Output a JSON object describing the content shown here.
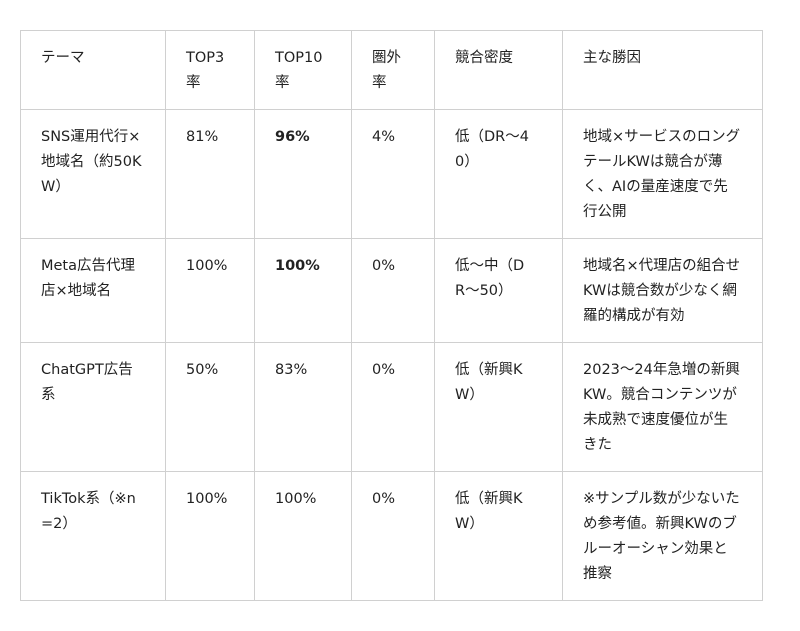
{
  "headers": [
    "テーマ",
    "TOP3率",
    "TOP10率",
    "圏外率",
    "競合密度",
    "主な勝因"
  ],
  "rows": [
    [
      "SNS運用代行×地域名（約50KW）",
      "81%",
      "96%",
      "4%",
      "低（DR〜40）",
      "地域×サービスのロングテールKWは競合が薄く、AIの量産速度で先行公開"
    ],
    [
      "Meta広告代理店×地域名",
      "100%",
      "100%",
      "0%",
      "低〜中（DR〜50）",
      "地域名×代理店の組合せKWは競合数が少なく網羅的構成が有効"
    ],
    [
      "ChatGPT広告系",
      "50%",
      "83%",
      "0%",
      "低（新興KW）",
      "2023〜24年急増の新興KW。競合コンテンツが未成熟で速度優位が生きた"
    ],
    [
      "TikTok系（※n=2）",
      "100%",
      "100%",
      "0%",
      "低（新興KW）",
      "※サンプル数が少ないため参考値。新興KWのブルーオーシャン効果と推察"
    ]
  ]
}
